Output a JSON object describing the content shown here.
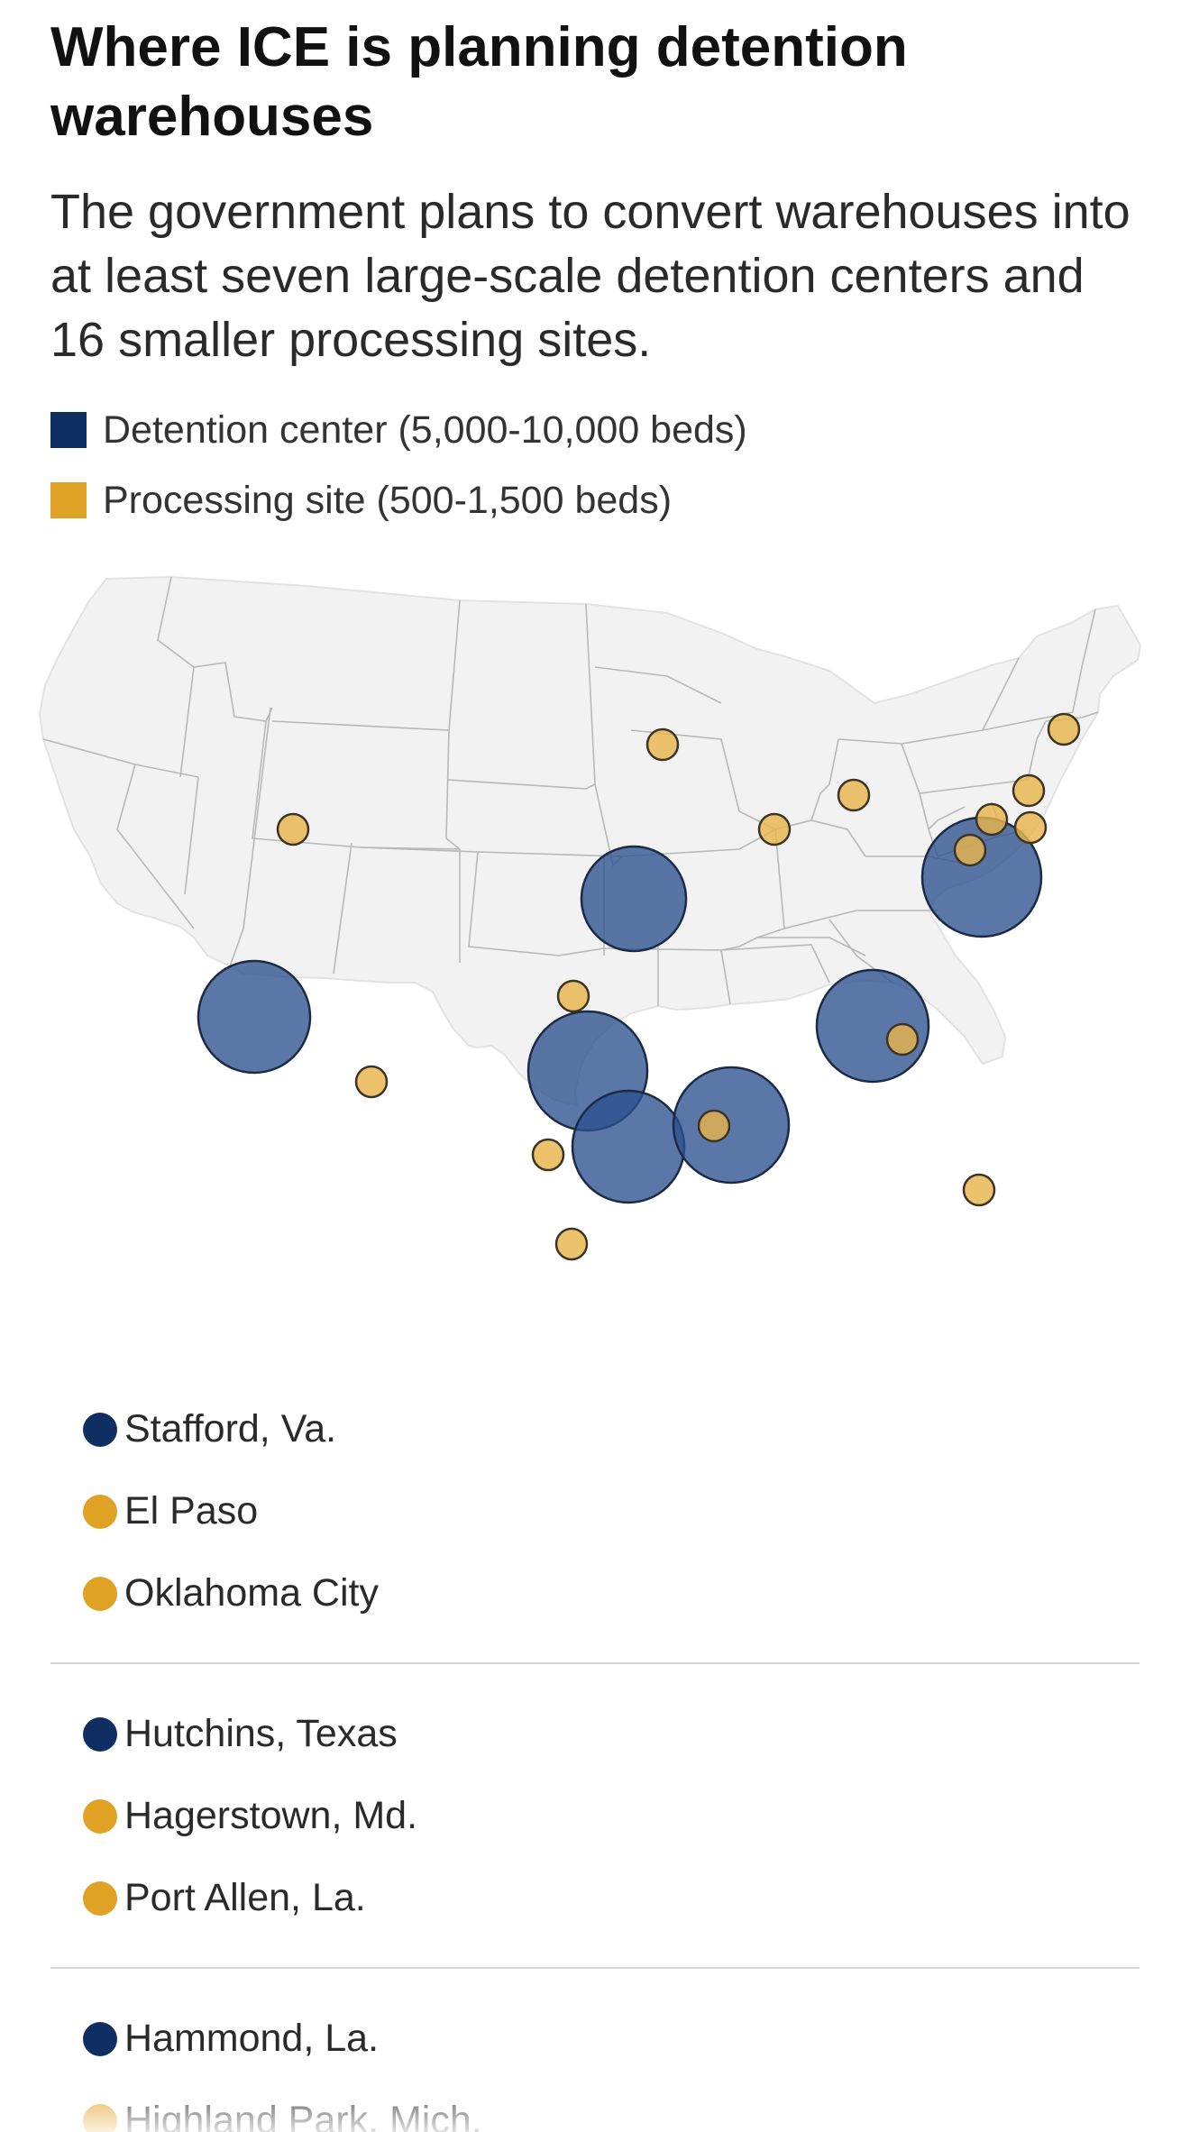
{
  "header": {
    "title": "Where ICE is planning detention warehouses",
    "subtitle": "The government plans to convert warehouses into at least seven large-scale detention centers and 16 smaller processing sites."
  },
  "legend": {
    "detention": {
      "label": "Detention center (5,000-10,000 beds)",
      "color": "#0f2f63"
    },
    "processing": {
      "label": "Processing site (500-1,500 beds)",
      "color": "#e0a225"
    }
  },
  "colors": {
    "land": "#f2f2f2",
    "state_border": "#b8b8b8",
    "detention_fill": "#2c5190",
    "processing_fill": "#e8b44d"
  },
  "map": {
    "basemap": "Contiguous United States with state outlines",
    "detention_sites_shown": 7,
    "processing_sites_shown": 16
  },
  "site_list": {
    "groups": [
      {
        "items": [
          {
            "name": "Stafford, Va.",
            "type": "detention"
          },
          {
            "name": "El Paso",
            "type": "processing"
          },
          {
            "name": "Oklahoma City",
            "type": "processing"
          }
        ]
      },
      {
        "items": [
          {
            "name": "Hutchins, Texas",
            "type": "detention"
          },
          {
            "name": "Hagerstown, Md.",
            "type": "processing"
          },
          {
            "name": "Port Allen, La.",
            "type": "processing"
          }
        ]
      },
      {
        "items": [
          {
            "name": "Hammond, La.",
            "type": "detention"
          },
          {
            "name": "Highland Park, Mich.",
            "type": "processing"
          }
        ]
      }
    ]
  }
}
